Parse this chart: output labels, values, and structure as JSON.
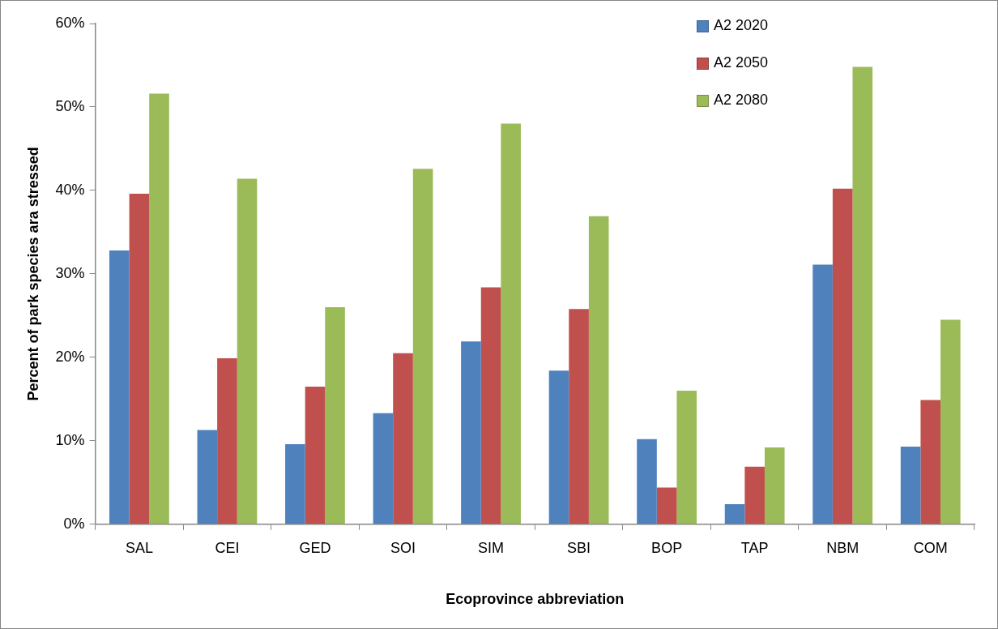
{
  "chart_data": {
    "type": "bar",
    "xlabel": "Ecoprovince abbreviation",
    "ylabel": "Percent of park species ara stressed",
    "categories": [
      "SAL",
      "CEI",
      "GED",
      "SOI",
      "SIM",
      "SBI",
      "BOP",
      "TAP",
      "NBM",
      "COM"
    ],
    "series": [
      {
        "name": "A2 2020",
        "color": "#4f81bd",
        "values": [
          32.8,
          11.3,
          9.6,
          13.3,
          21.9,
          18.4,
          10.2,
          2.4,
          31.1,
          9.3
        ]
      },
      {
        "name": "A2 2050",
        "color": "#c0504d",
        "values": [
          39.6,
          19.9,
          16.5,
          20.5,
          28.4,
          25.8,
          4.4,
          6.9,
          40.2,
          14.9
        ]
      },
      {
        "name": "A2 2080",
        "color": "#9bbb59",
        "values": [
          51.6,
          41.4,
          26.0,
          42.6,
          48.0,
          36.9,
          16.0,
          9.2,
          54.8,
          24.5
        ]
      }
    ],
    "ylim": [
      0,
      60
    ],
    "yticks": [
      {
        "value": 0,
        "label": "0%"
      },
      {
        "value": 10,
        "label": "10%"
      },
      {
        "value": 20,
        "label": "20%"
      },
      {
        "value": 30,
        "label": "30%"
      },
      {
        "value": 40,
        "label": "40%"
      },
      {
        "value": 50,
        "label": "50%"
      },
      {
        "value": 60,
        "label": "60%"
      }
    ],
    "grid": false,
    "legend": "top right"
  }
}
